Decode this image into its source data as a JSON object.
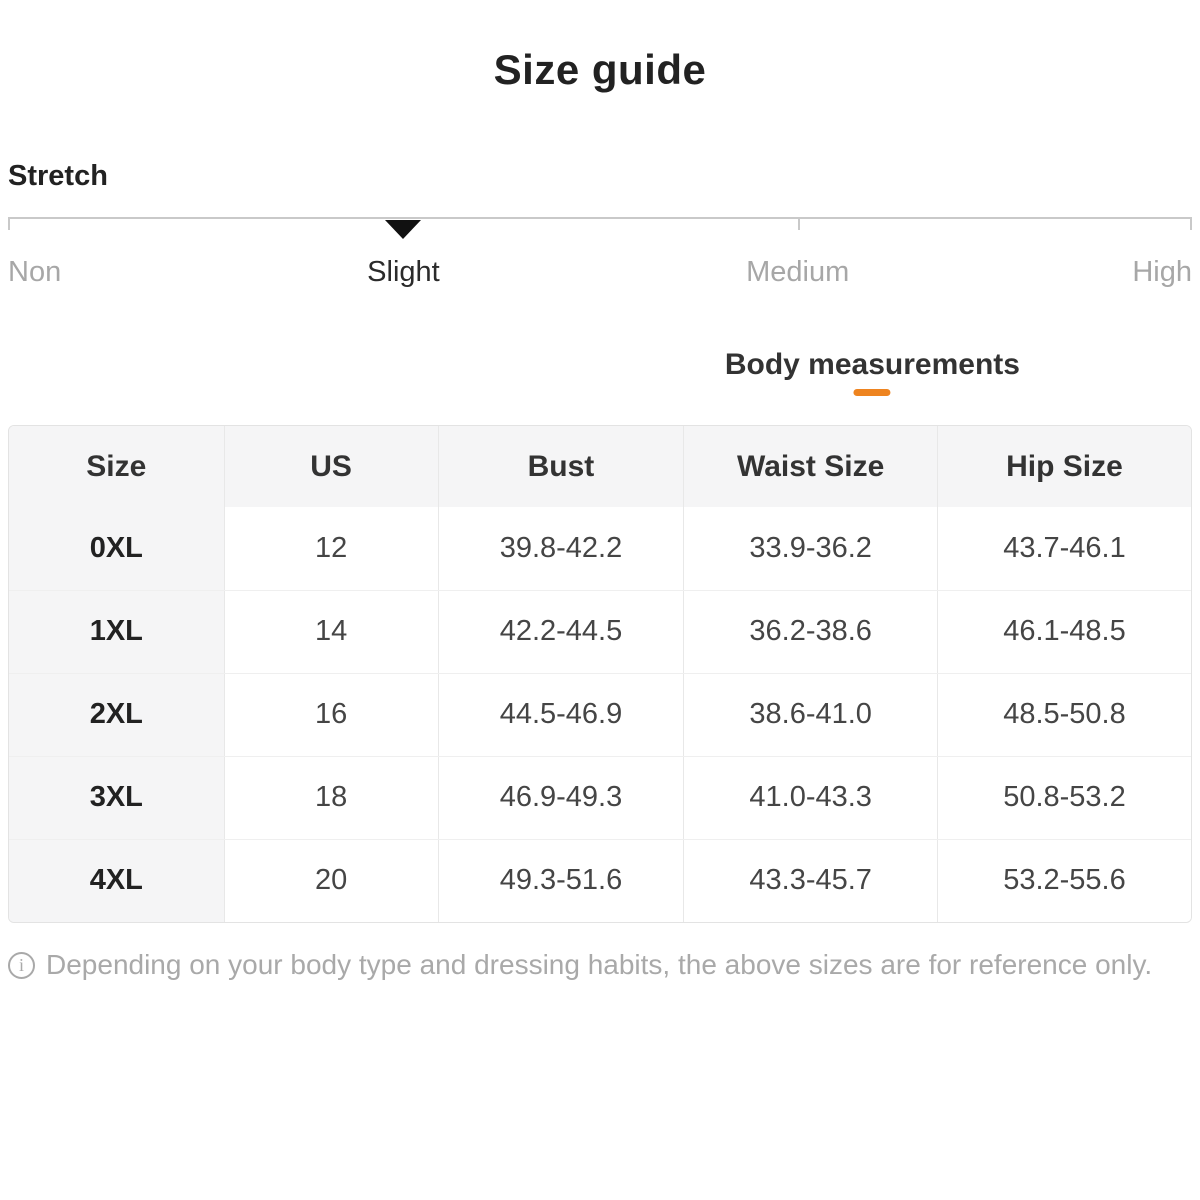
{
  "page": {
    "title": "Size guide"
  },
  "stretch": {
    "label": "Stretch",
    "selected_index": 1,
    "marker_positions_pct": [
      0,
      33.4,
      66.7,
      100
    ],
    "options": [
      {
        "label": "Non",
        "selected": false
      },
      {
        "label": "Slight",
        "selected": true
      },
      {
        "label": "Medium",
        "selected": false
      },
      {
        "label": "High",
        "selected": false
      }
    ]
  },
  "tabs": {
    "body_measurements": "Body measurements"
  },
  "table": {
    "columns": [
      "Size",
      "US",
      "Bust",
      "Waist Size",
      "Hip Size"
    ],
    "rows": [
      [
        "0XL",
        "12",
        "39.8-42.2",
        "33.9-36.2",
        "43.7-46.1"
      ],
      [
        "1XL",
        "14",
        "42.2-44.5",
        "36.2-38.6",
        "46.1-48.5"
      ],
      [
        "2XL",
        "16",
        "44.5-46.9",
        "38.6-41.0",
        "48.5-50.8"
      ],
      [
        "3XL",
        "18",
        "46.9-49.3",
        "41.0-43.3",
        "50.8-53.2"
      ],
      [
        "4XL",
        "20",
        "49.3-51.6",
        "43.3-45.7",
        "53.2-55.6"
      ]
    ]
  },
  "footer": {
    "icon": "info-icon",
    "icon_glyph": "i",
    "note": "Depending on your body type and dressing habits, the above sizes are for reference only."
  },
  "colors": {
    "accent_orange": "#ee8420",
    "marker_black": "#111111",
    "muted_gray": "#a7a7a7",
    "header_bg": "#f5f5f6"
  }
}
